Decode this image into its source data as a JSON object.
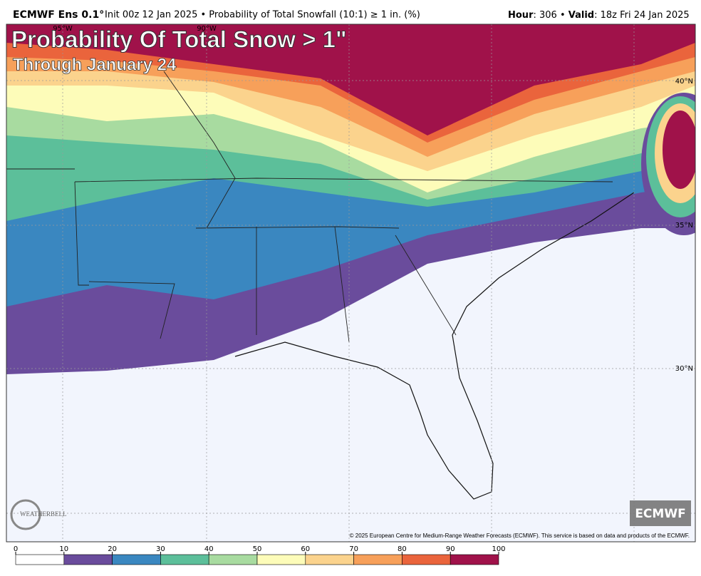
{
  "header": {
    "model": "ECMWF Ens 0.1°",
    "info": "Init 00z 12 Jan 2025 • Probability of Total Snowfall (10:1) ≥ 1 in. (%)",
    "hour_label": "Hour",
    "hour_text": ": 306 • ",
    "valid_label": "Valid",
    "valid_text": ": 18z Fri 24 Jan 2025"
  },
  "title": "Probability Of Total Snow > 1\"",
  "subtitle": "Through January 24",
  "map": {
    "lat_labels": [
      "40°N",
      "35°N",
      "30°N"
    ],
    "lon_labels": [
      "95°W",
      "90°W"
    ]
  },
  "credit": "© 2025 European Centre for Medium-Range Weather Forecasts (ECMWF). This service is based on data and products of the ECMWF.",
  "badge": "ECMWF",
  "logo": "WEATHERBELL",
  "colorbar": {
    "ticks": [
      0,
      10,
      20,
      30,
      40,
      50,
      60,
      70,
      80,
      90,
      100
    ],
    "colors": [
      "#ffffff",
      "#6a4c9c",
      "#3a87c0",
      "#5cbf9a",
      "#a8dba0",
      "#fdfcb9",
      "#fbd38d",
      "#f7a05a",
      "#ea643c",
      "#a0124a"
    ]
  }
}
